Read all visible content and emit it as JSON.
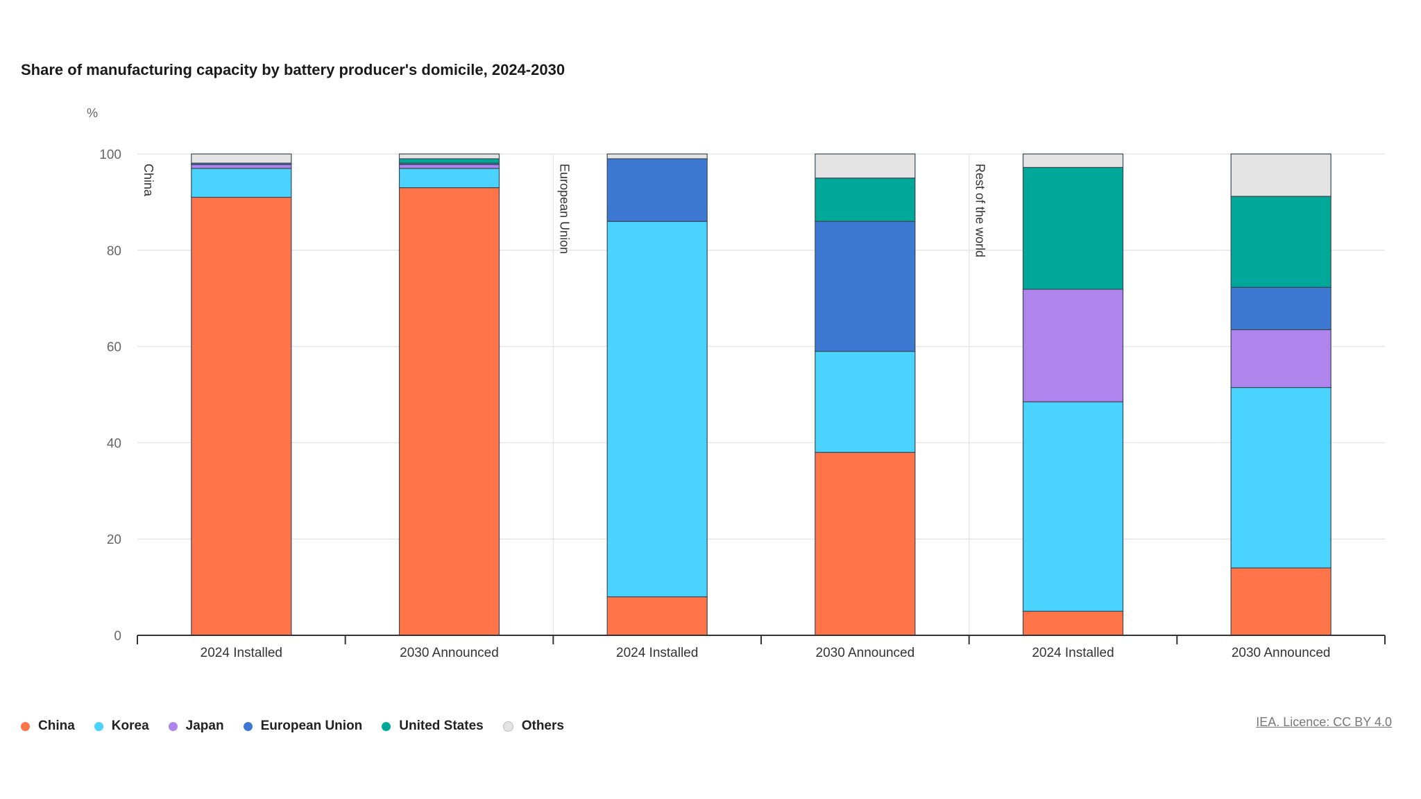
{
  "chart_data": {
    "type": "bar",
    "stacked": true,
    "title": "Share of manufacturing capacity by battery producer's domicile, 2024-2030",
    "ylabel": "%",
    "ylim": [
      0,
      100
    ],
    "yticks": [
      0,
      20,
      40,
      60,
      80,
      100
    ],
    "grid": true,
    "groups": [
      "China",
      "European Union",
      "Rest of the world"
    ],
    "categories": [
      "2024 Installed",
      "2030 Announced",
      "2024 Installed",
      "2030 Announced",
      "2024 Installed",
      "2030 Announced"
    ],
    "category_group": [
      0,
      0,
      1,
      1,
      2,
      2
    ],
    "series": [
      {
        "name": "China",
        "color": "#FF7549",
        "values": [
          91,
          93,
          8,
          38,
          5,
          14
        ]
      },
      {
        "name": "Korea",
        "color": "#4AD3FF",
        "values": [
          6,
          4,
          78,
          21,
          43.5,
          37.5
        ]
      },
      {
        "name": "Japan",
        "color": "#AF84EC",
        "values": [
          0.8,
          0.8,
          0,
          0,
          23.4,
          12
        ]
      },
      {
        "name": "European Union",
        "color": "#3D78D3",
        "values": [
          0.3,
          0.3,
          13,
          27,
          0,
          8.8
        ]
      },
      {
        "name": "United States",
        "color": "#00A89A",
        "values": [
          0,
          0.9,
          0,
          9,
          25.3,
          18.9
        ]
      },
      {
        "name": "Others",
        "color": "#E4E4E4",
        "values": [
          1.9,
          1,
          1,
          5,
          2.8,
          8.8
        ]
      }
    ],
    "legend_position": "bottom-left"
  },
  "source": "IEA. Licence: CC BY 4.0"
}
